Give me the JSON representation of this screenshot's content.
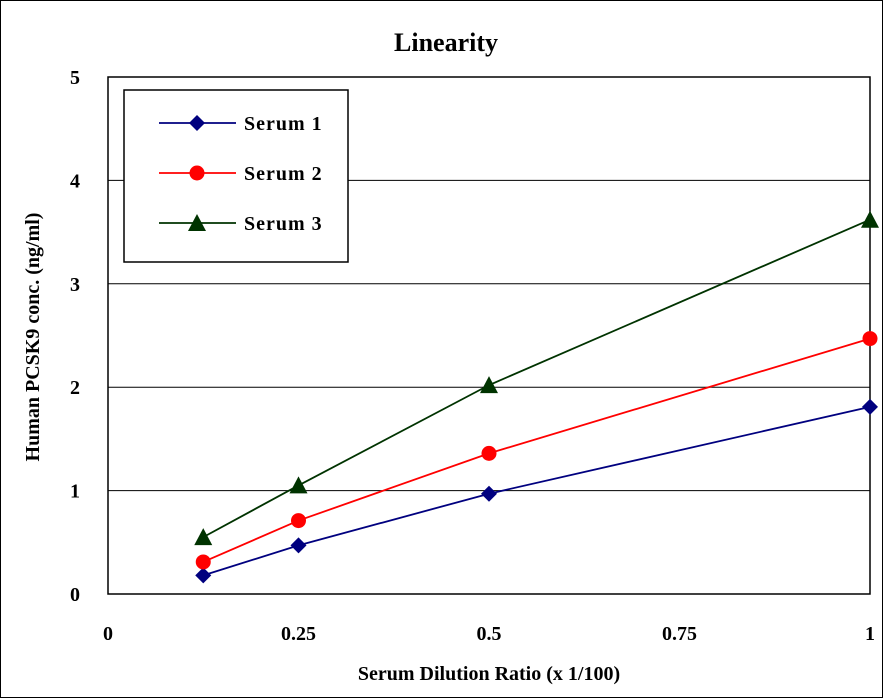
{
  "chart_data": {
    "type": "line",
    "title": "Linearity",
    "xlabel": "Serum Dilution Ratio (x 1/100)",
    "ylabel": "Human PCSK9 conc. (ng/ml)",
    "xlim": [
      0,
      1
    ],
    "ylim": [
      0,
      5
    ],
    "xticks": [
      "0",
      "0.25",
      "0.5",
      "0.75",
      "1"
    ],
    "yticks": [
      "0",
      "1",
      "2",
      "3",
      "4",
      "5"
    ],
    "grid": "horizontal",
    "legend_position": "top-left",
    "x": [
      0.125,
      0.25,
      0.5,
      1
    ],
    "series": [
      {
        "name": "Serum 1",
        "values": [
          0.18,
          0.47,
          0.97,
          1.81
        ],
        "color": "#00007f",
        "marker": "diamond"
      },
      {
        "name": "Serum 2",
        "values": [
          0.31,
          0.71,
          1.36,
          2.47
        ],
        "color": "#ff0000",
        "marker": "circle"
      },
      {
        "name": "Serum 3",
        "values": [
          0.55,
          1.05,
          2.02,
          3.62
        ],
        "color": "#003300",
        "marker": "triangle"
      }
    ]
  }
}
